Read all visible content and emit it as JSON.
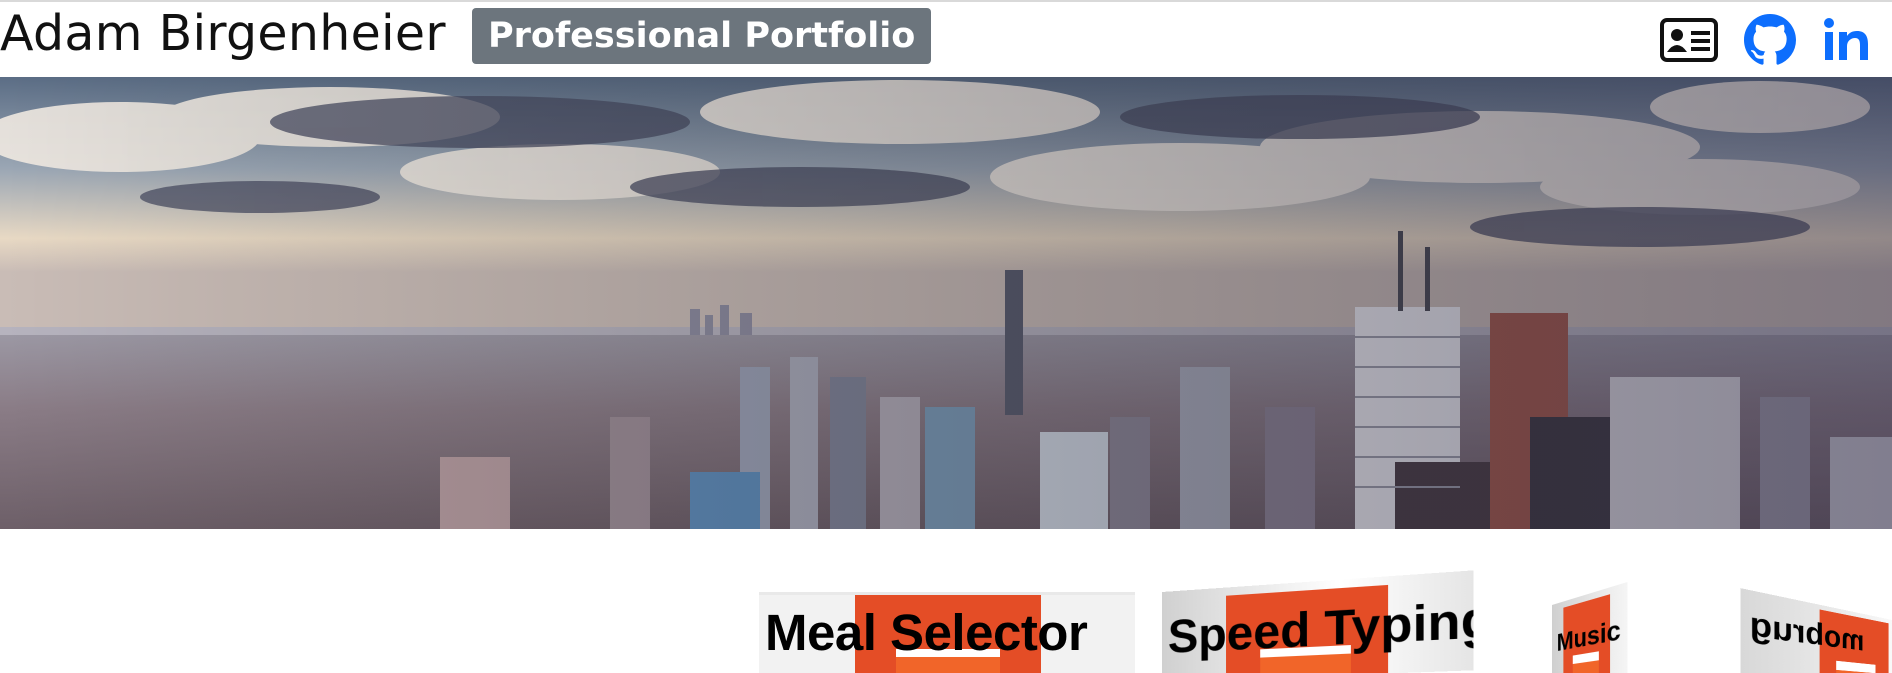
{
  "header": {
    "name": "Adam Birgenheier",
    "badge": "Professional Portfolio",
    "links": [
      {
        "icon": "resume-card-icon",
        "label": "Resume"
      },
      {
        "icon": "github-icon",
        "label": "GitHub"
      },
      {
        "icon": "linkedin-icon",
        "label": "LinkedIn"
      }
    ]
  },
  "hero": {
    "subject": "Toronto skyline aerial view under a cloudy sky"
  },
  "projects": [
    {
      "title": "Meal Selector"
    },
    {
      "title": "Speed Typing"
    },
    {
      "title": "Music Player"
    },
    {
      "title": "mobrug"
    }
  ],
  "colors": {
    "badge_bg": "#6c757d",
    "icon_blue": "#0d6efd",
    "html5_orange": "#e44d26"
  }
}
